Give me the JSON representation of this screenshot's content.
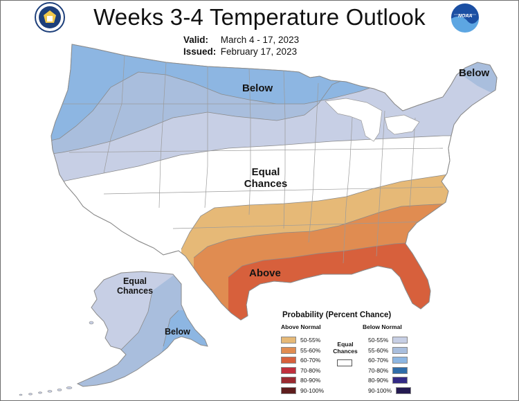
{
  "title": "Weeks 3-4 Temperature Outlook",
  "valid": {
    "label": "Valid:",
    "value": "March 4 - 17, 2023"
  },
  "issued": {
    "label": "Issued:",
    "value": "February 17, 2023"
  },
  "logos": {
    "left": "department-of-commerce-seal",
    "right": "noaa-logo",
    "noaa_text": "NOAA"
  },
  "regions": {
    "below_north": "Below",
    "below_northeast": "Below",
    "equal_center_line1": "Equal",
    "equal_center_line2": "Chances",
    "above": "Above",
    "alaska_equal_line1": "Equal",
    "alaska_equal_line2": "Chances",
    "alaska_below": "Below"
  },
  "colors": {
    "above_50": "#e6b977",
    "above_55": "#e08c51",
    "above_60": "#d7603c",
    "above_70": "#c02f3c",
    "above_80": "#9a2a30",
    "above_90": "#5e1d1d",
    "below_50": "#c7cfe5",
    "below_55": "#a9bedd",
    "below_60": "#8db6e2",
    "below_70": "#2f6ca8",
    "below_80": "#332a85",
    "below_90": "#241a51",
    "land": "#ffffff",
    "boundary": "#9a9a9a"
  },
  "legend": {
    "title": "Probability (Percent Chance)",
    "above_header": "Above Normal",
    "below_header": "Below Normal",
    "equal_line1": "Equal",
    "equal_line2": "Chances",
    "above": [
      "50-55%",
      "55-60%",
      "60-70%",
      "70-80%",
      "80-90%",
      "90-100%"
    ],
    "below": [
      "50-55%",
      "55-60%",
      "60-70%",
      "70-80%",
      "80-90%",
      "90-100%"
    ]
  }
}
